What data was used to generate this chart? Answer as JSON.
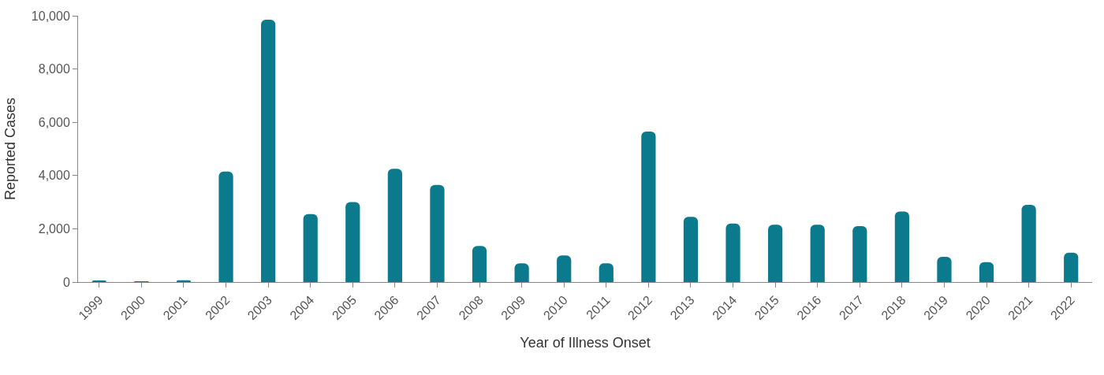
{
  "chart_data": {
    "type": "bar",
    "xlabel": "Year of Illness Onset",
    "ylabel": "Reported Cases",
    "categories": [
      "1999",
      "2000",
      "2001",
      "2002",
      "2003",
      "2004",
      "2005",
      "2006",
      "2007",
      "2008",
      "2009",
      "2010",
      "2011",
      "2012",
      "2013",
      "2014",
      "2015",
      "2016",
      "2017",
      "2018",
      "2019",
      "2020",
      "2021",
      "2022"
    ],
    "values": [
      60,
      20,
      70,
      4150,
      9850,
      2550,
      3000,
      4250,
      3650,
      1350,
      700,
      1000,
      700,
      5650,
      2450,
      2200,
      2150,
      2150,
      2100,
      2650,
      950,
      750,
      2900,
      1100
    ],
    "color": "#0b7a8c",
    "ylim": [
      0,
      10000
    ],
    "yticks": [
      {
        "value": 0,
        "label": "0"
      },
      {
        "value": 2000,
        "label": "2,000"
      },
      {
        "value": 4000,
        "label": "4,000"
      },
      {
        "value": 6000,
        "label": "6,000"
      },
      {
        "value": 8000,
        "label": "8,000"
      },
      {
        "value": 10000,
        "label": "10,000"
      }
    ],
    "tick_labels": true
  }
}
